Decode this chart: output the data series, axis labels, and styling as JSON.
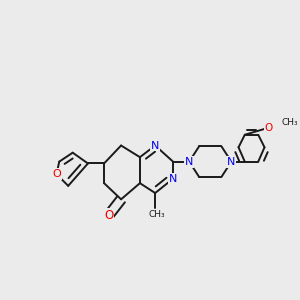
{
  "background_color": "#ebebeb",
  "bond_color": "#1a1a1a",
  "nitrogen_color": "#0000ee",
  "oxygen_color": "#ee0000",
  "carbon_color": "#1a1a1a",
  "bond_width": 1.4,
  "dbo": 0.012,
  "figsize": [
    3.0,
    3.0
  ],
  "dpi": 100,
  "xlim": [
    0.0,
    1.0
  ],
  "ylim": [
    0.15,
    0.95
  ]
}
